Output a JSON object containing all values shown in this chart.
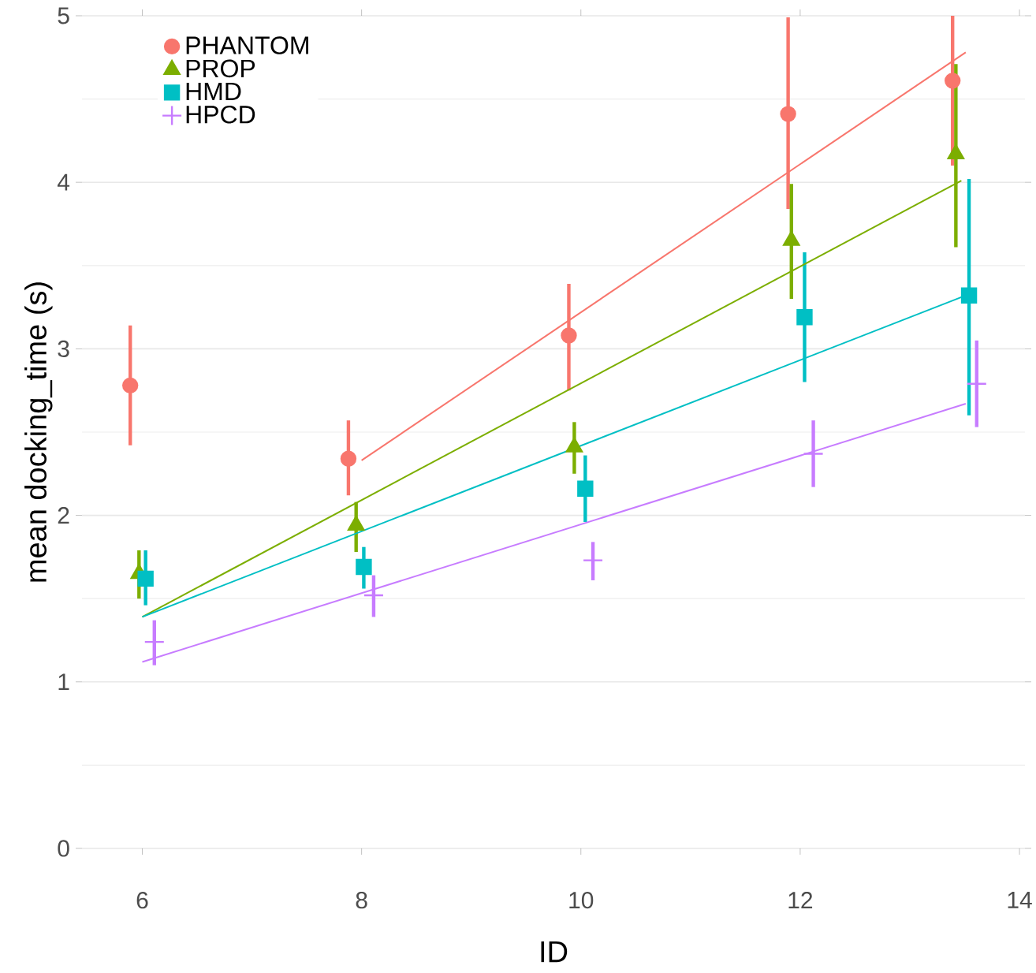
{
  "chart_data": {
    "type": "scatter",
    "xlabel": "ID",
    "ylabel": "mean docking_time (s)",
    "xlim": [
      5.45,
      14.05
    ],
    "ylim": [
      0,
      5
    ],
    "xticks": [
      6,
      8,
      10,
      12,
      14
    ],
    "yticks": [
      0,
      1,
      2,
      3,
      4,
      5
    ],
    "grid": "y",
    "legend": "top left",
    "series": [
      {
        "name": "PHANTOM",
        "color": "#f8766d",
        "marker": "circle",
        "x": [
          5.89,
          7.88,
          9.89,
          11.89,
          13.39
        ],
        "values": [
          2.78,
          2.34,
          3.08,
          4.41,
          4.61
        ],
        "errors": [
          [
            2.42,
            3.14
          ],
          [
            2.12,
            2.57
          ],
          [
            2.75,
            3.39
          ],
          [
            3.84,
            4.99
          ],
          [
            4.1,
            5.0
          ]
        ]
      },
      {
        "name": "PROP",
        "color": "#7cae00",
        "marker": "triangle",
        "x": [
          5.97,
          7.95,
          9.94,
          11.92,
          13.42
        ],
        "values": [
          1.65,
          1.94,
          2.41,
          3.65,
          4.17
        ],
        "errors": [
          [
            1.5,
            1.79
          ],
          [
            1.78,
            2.08
          ],
          [
            2.25,
            2.56
          ],
          [
            3.3,
            3.99
          ],
          [
            3.61,
            4.71
          ]
        ]
      },
      {
        "name": "HMD",
        "color": "#00bfc4",
        "marker": "square",
        "x": [
          6.03,
          8.02,
          10.04,
          12.04,
          13.54
        ],
        "values": [
          1.62,
          1.69,
          2.16,
          3.19,
          3.32
        ],
        "errors": [
          [
            1.46,
            1.79
          ],
          [
            1.56,
            1.81
          ],
          [
            1.96,
            2.36
          ],
          [
            2.8,
            3.58
          ],
          [
            2.6,
            4.02
          ]
        ]
      },
      {
        "name": "HPCD",
        "color": "#c77cff",
        "marker": "cross",
        "x": [
          6.11,
          8.11,
          10.11,
          12.12,
          13.61
        ],
        "values": [
          1.24,
          1.52,
          1.73,
          2.37,
          2.79
        ],
        "errors": [
          [
            1.1,
            1.37
          ],
          [
            1.39,
            1.64
          ],
          [
            1.61,
            1.84
          ],
          [
            2.17,
            2.57
          ],
          [
            2.53,
            3.05
          ]
        ]
      },
      {
        "type": "line",
        "color": "#f8766d",
        "x": [
          8.0,
          13.51
        ],
        "values": [
          2.33,
          4.78
        ]
      },
      {
        "type": "line",
        "color": "#7cae00",
        "x": [
          6.0,
          13.47
        ],
        "values": [
          1.39,
          4.01
        ]
      },
      {
        "type": "line",
        "color": "#00bfc4",
        "x": [
          6.0,
          13.47
        ],
        "values": [
          1.39,
          3.31
        ]
      },
      {
        "type": "line",
        "color": "#c77cff",
        "x": [
          6.0,
          13.51
        ],
        "values": [
          1.12,
          2.67
        ]
      }
    ]
  }
}
